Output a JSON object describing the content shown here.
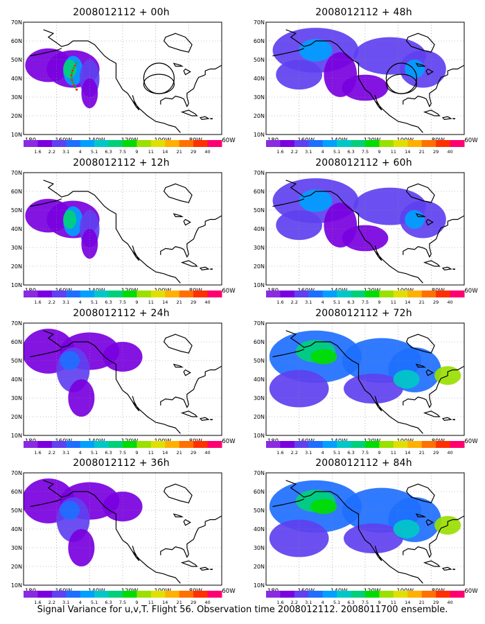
{
  "panels": [
    {
      "id": "p00",
      "title": "2008012112 + 00h",
      "intensity": 0,
      "circles": true,
      "track": true
    },
    {
      "id": "p48",
      "title": "2008012112 + 48h",
      "intensity": 2,
      "circles": true,
      "track": false
    },
    {
      "id": "p12",
      "title": "2008012112 + 12h",
      "intensity": 0,
      "circles": false,
      "track": false
    },
    {
      "id": "p60",
      "title": "2008012112 + 60h",
      "intensity": 2,
      "circles": false,
      "track": false
    },
    {
      "id": "p24",
      "title": "2008012112 + 24h",
      "intensity": 1,
      "circles": false,
      "track": false
    },
    {
      "id": "p72",
      "title": "2008012112 + 72h",
      "intensity": 3,
      "circles": false,
      "track": false
    },
    {
      "id": "p36",
      "title": "2008012112 + 36h",
      "intensity": 1,
      "circles": false,
      "track": false
    },
    {
      "id": "p84",
      "title": "2008012112 + 84h",
      "intensity": 3,
      "circles": false,
      "track": false
    }
  ],
  "lat_labels": [
    "70N",
    "60N",
    "50N",
    "40N",
    "30N",
    "20N",
    "10N"
  ],
  "lon_labels": [
    "180",
    "160W",
    "140W",
    "120W",
    "100W",
    "80W",
    "60W"
  ],
  "colorbar": {
    "labels": [
      "1.6",
      "2.2",
      "3.1",
      "4",
      "5.1",
      "6.3",
      "7.5",
      "9",
      "11",
      "14",
      "21",
      "29",
      "40"
    ],
    "colors": [
      "#8a2be2",
      "#7a00e0",
      "#6040f0",
      "#1e6fff",
      "#00a0ff",
      "#00c8c8",
      "#00d07a",
      "#00dc00",
      "#9ae000",
      "#e0e000",
      "#ffb000",
      "#ff7000",
      "#ff3000",
      "#ff0070"
    ]
  },
  "footer": "Signal Variance for u,v,T. Flight 56. Observation time 2008012112. 2008011700 ensemble."
}
